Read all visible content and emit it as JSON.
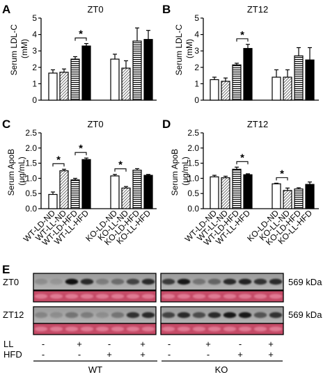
{
  "chart_data": [
    {
      "panel_letter": "A",
      "title": "ZT0",
      "type": "bar",
      "ylabel": "Serum LDL-C (mM)",
      "ylabel_lines": [
        "Serum LDL-C",
        "(mM)"
      ],
      "ylim": [
        0,
        5
      ],
      "yticks": [
        "0",
        "1",
        "2",
        "3",
        "4",
        "5"
      ],
      "categories": [
        "WT-LD-ND",
        "WT-LL-ND",
        "WT-LD-HFD",
        "WT-LL-HFD",
        "KO-LD-ND",
        "KO-LL-ND",
        "KO-LD-HFD",
        "KO-LL-HFD"
      ],
      "values": [
        1.65,
        1.7,
        2.5,
        3.3,
        2.5,
        1.95,
        3.6,
        3.7
      ],
      "errors": [
        0.2,
        0.2,
        0.15,
        0.15,
        0.3,
        0.45,
        0.8,
        0.55
      ],
      "significance": [
        {
          "bars": [
            2,
            3
          ],
          "label": "*"
        }
      ]
    },
    {
      "panel_letter": "B",
      "title": "ZT12",
      "type": "bar",
      "ylabel": "Serum LDL-C (mM)",
      "ylabel_lines": [
        "Serum LDL-C",
        "(mM)"
      ],
      "ylim": [
        0,
        5
      ],
      "yticks": [
        "0",
        "1",
        "2",
        "3",
        "4",
        "5"
      ],
      "categories": [
        "WT-LD-ND",
        "WT-LL-ND",
        "WT-LD-HFD",
        "WT-LL-HFD",
        "KO-LD-ND",
        "KO-LL-ND",
        "KO-LD-HFD",
        "KO-LL-HFD"
      ],
      "values": [
        1.25,
        1.15,
        2.15,
        3.15,
        1.4,
        1.4,
        2.7,
        2.45
      ],
      "errors": [
        0.15,
        0.2,
        0.1,
        0.25,
        0.45,
        0.45,
        0.5,
        0.75
      ],
      "significance": [
        {
          "bars": [
            2,
            3
          ],
          "label": "*"
        }
      ]
    },
    {
      "panel_letter": "C",
      "title": "ZT0",
      "type": "bar",
      "ylabel": "Serum ApoB (μg/mL)",
      "ylabel_lines": [
        "Serum ApoB",
        "(μg/mL)"
      ],
      "ylim": [
        0,
        2.5
      ],
      "yticks": [
        "0.0",
        "0.5",
        "1.0",
        "1.5",
        "2.0",
        "2.5"
      ],
      "categories": [
        "WT-LD-ND",
        "WT-LL-ND",
        "WT-LD-HFD",
        "WT-LL-HFD",
        "KO-LD-ND",
        "KO-LL-ND",
        "KO-LD-HFD",
        "KO-LL-HFD"
      ],
      "values": [
        0.47,
        1.25,
        0.95,
        1.62,
        1.08,
        0.68,
        1.27,
        1.1
      ],
      "errors": [
        0.08,
        0.05,
        0.05,
        0.05,
        0.05,
        0.05,
        0.05,
        0.03
      ],
      "significance": [
        {
          "bars": [
            0,
            1
          ],
          "label": "*"
        },
        {
          "bars": [
            2,
            3
          ],
          "label": "*"
        },
        {
          "bars": [
            4,
            5
          ],
          "label": "*"
        }
      ]
    },
    {
      "panel_letter": "D",
      "title": "ZT12",
      "type": "bar",
      "ylabel": "Serum ApoB (μg/mL)",
      "ylabel_lines": [
        "Serum ApoB",
        "(μg/mL)"
      ],
      "ylim": [
        0,
        2.5
      ],
      "yticks": [
        "0.0",
        "0.5",
        "1.0",
        "1.5",
        "2.0",
        "2.5"
      ],
      "categories": [
        "WT-LD-ND",
        "WT-LL-ND",
        "WT-LD-HFD",
        "WT-LL-HFD",
        "KO-LD-ND",
        "KO-LL-ND",
        "KO-LD-HFD",
        "KO-LL-HFD"
      ],
      "values": [
        1.05,
        1.02,
        1.3,
        1.12,
        0.82,
        0.6,
        0.65,
        0.8
      ],
      "errors": [
        0.05,
        0.05,
        0.07,
        0.03,
        0.02,
        0.08,
        0.04,
        0.08
      ],
      "significance": [
        {
          "bars": [
            2,
            3
          ],
          "label": "*"
        },
        {
          "bars": [
            4,
            5
          ],
          "label": "*"
        }
      ]
    }
  ],
  "bar_styles": [
    "open",
    "dense-hatch",
    "horizontal-stripe",
    "solid-black",
    "open",
    "dense-hatch",
    "horizontal-stripe",
    "solid-black"
  ],
  "x_tick_labels": [
    "WT-LD-ND",
    "WT-LL-ND",
    "WT-LD-HFD",
    "WT-LL-HFD",
    "KO-LD-ND",
    "KO-LL-ND",
    "KO-LD-HFD",
    "KO-LL-HFD"
  ],
  "blot": {
    "panel_letter": "E",
    "row_labels": [
      "ZT0",
      "ZT12"
    ],
    "band_size": "569 kDa",
    "lanes_per_group": 8,
    "band_intensity": {
      "ZT0": [
        0.15,
        0.1,
        0.9,
        0.75,
        0.25,
        0.35,
        0.6,
        0.75,
        0.65,
        0.85,
        0.3,
        0.4,
        0.75,
        0.8,
        0.7,
        0.75
      ],
      "ZT12": [
        0.2,
        0.15,
        0.3,
        0.25,
        0.15,
        0.3,
        0.7,
        0.75,
        0.6,
        0.75,
        0.55,
        0.75,
        0.85,
        0.85,
        0.5,
        0.7
      ]
    },
    "loading_color": "#c44a66",
    "conditions": {
      "ll_label": "LL",
      "hfd_label": "HFD",
      "ll_signs": [
        "-",
        "+",
        "-",
        "+",
        "-",
        "+",
        "-",
        "+"
      ],
      "hfd_signs": [
        "-",
        "-",
        "+",
        "+",
        "-",
        "-",
        "+",
        "+"
      ]
    },
    "group_labels": [
      "WT",
      "KO"
    ]
  }
}
